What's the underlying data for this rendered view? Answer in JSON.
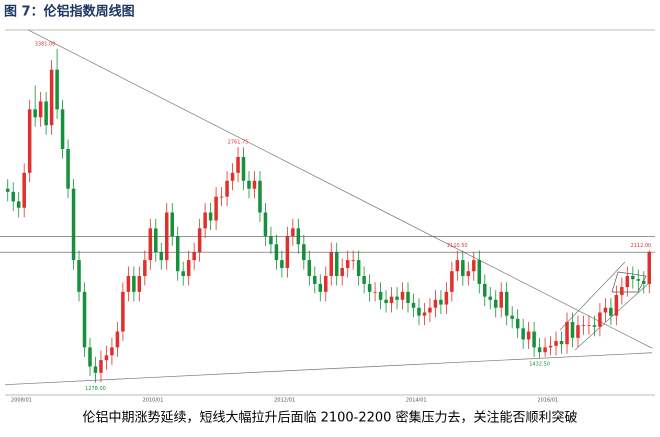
{
  "chart_data": {
    "type": "candlestick",
    "title": "图 7：伦铝指数周线图",
    "caption": "伦铝中期涨势延续，短线大幅拉升后面临 2100-2200 密集压力去，关注能否顺利突破",
    "up_color": "#e0302c",
    "down_color": "#14913a",
    "ylim": [
      1200,
      3500
    ],
    "categories": [
      null,
      null,
      null,
      "2008/01",
      null,
      null,
      null,
      null,
      null,
      null,
      null,
      null,
      null,
      null,
      null,
      null,
      null,
      null,
      null,
      null,
      null,
      null,
      null,
      null,
      null,
      null,
      null,
      "2010/01",
      null,
      null,
      null,
      null,
      null,
      null,
      null,
      null,
      null,
      null,
      null,
      null,
      null,
      null,
      null,
      null,
      null,
      null,
      null,
      null,
      null,
      null,
      null,
      "2012/01",
      null,
      null,
      null,
      null,
      null,
      null,
      null,
      null,
      null,
      null,
      null,
      null,
      null,
      null,
      null,
      null,
      null,
      null,
      null,
      null,
      null,
      null,
      null,
      "2014/01",
      null,
      null,
      null,
      null,
      null,
      null,
      null,
      null,
      null,
      null,
      null,
      null,
      null,
      null,
      null,
      null,
      null,
      null,
      null,
      null,
      null,
      null,
      null,
      "2016/01",
      null,
      null,
      null,
      null,
      null,
      null,
      null,
      null,
      null,
      null,
      null,
      null,
      null,
      null,
      null,
      null,
      null,
      null
    ],
    "ohlc": [
      [
        2500,
        2560,
        2420,
        2480
      ],
      [
        2480,
        2540,
        2360,
        2420
      ],
      [
        2420,
        2480,
        2320,
        2380
      ],
      [
        2380,
        2660,
        2320,
        2600
      ],
      [
        2600,
        3060,
        2540,
        3000
      ],
      [
        3000,
        3150,
        2890,
        2950
      ],
      [
        2950,
        3110,
        2890,
        3050
      ],
      [
        3050,
        3110,
        2840,
        2900
      ],
      [
        2900,
        3310,
        2840,
        3250
      ],
      [
        3250,
        3381,
        2940,
        3000
      ],
      [
        3000,
        3060,
        2690,
        2750
      ],
      [
        2750,
        2810,
        2440,
        2500
      ],
      [
        2500,
        2560,
        1990,
        2050
      ],
      [
        2050,
        2110,
        1790,
        1850
      ],
      [
        1850,
        1910,
        1440,
        1500
      ],
      [
        1500,
        1560,
        1320,
        1380
      ],
      [
        1380,
        1440,
        1278,
        1340
      ],
      [
        1340,
        1480,
        1280,
        1420
      ],
      [
        1420,
        1510,
        1360,
        1450
      ],
      [
        1450,
        1560,
        1390,
        1500
      ],
      [
        1500,
        1660,
        1440,
        1600
      ],
      [
        1600,
        1910,
        1540,
        1850
      ],
      [
        1850,
        2010,
        1790,
        1950
      ],
      [
        1950,
        2010,
        1790,
        1850
      ],
      [
        1850,
        2010,
        1790,
        1950
      ],
      [
        1950,
        2110,
        1890,
        2050
      ],
      [
        2050,
        2310,
        1990,
        2250
      ],
      [
        2250,
        2310,
        2040,
        2100
      ],
      [
        2100,
        2160,
        1990,
        2050
      ],
      [
        2050,
        2410,
        1990,
        2350
      ],
      [
        2350,
        2410,
        2140,
        2200
      ],
      [
        2200,
        2260,
        1920,
        1980
      ],
      [
        1980,
        2040,
        1890,
        1950
      ],
      [
        1950,
        2110,
        1890,
        2050
      ],
      [
        2050,
        2160,
        1990,
        2100
      ],
      [
        2100,
        2310,
        2040,
        2250
      ],
      [
        2250,
        2410,
        2190,
        2350
      ],
      [
        2350,
        2410,
        2240,
        2300
      ],
      [
        2300,
        2510,
        2240,
        2450
      ],
      [
        2450,
        2510,
        2390,
        2450
      ],
      [
        2450,
        2610,
        2390,
        2550
      ],
      [
        2550,
        2660,
        2490,
        2600
      ],
      [
        2600,
        2761.75,
        2540,
        2700
      ],
      [
        2700,
        2760,
        2490,
        2550
      ],
      [
        2550,
        2610,
        2440,
        2500
      ],
      [
        2500,
        2610,
        2440,
        2550
      ],
      [
        2550,
        2610,
        2290,
        2350
      ],
      [
        2350,
        2410,
        2140,
        2200
      ],
      [
        2200,
        2260,
        2090,
        2150
      ],
      [
        2150,
        2210,
        1990,
        2050
      ],
      [
        2050,
        2110,
        1940,
        2000
      ],
      [
        2000,
        2260,
        1940,
        2200
      ],
      [
        2200,
        2310,
        2140,
        2250
      ],
      [
        2250,
        2310,
        2090,
        2150
      ],
      [
        2150,
        2210,
        1990,
        2050
      ],
      [
        2050,
        2110,
        1890,
        1950
      ],
      [
        1950,
        2010,
        1840,
        1900
      ],
      [
        1900,
        1960,
        1790,
        1850
      ],
      [
        1850,
        2010,
        1790,
        1950
      ],
      [
        1950,
        2160,
        1890,
        2100
      ],
      [
        2100,
        2160,
        1890,
        1950
      ],
      [
        1950,
        2060,
        1890,
        2000
      ],
      [
        2000,
        2110,
        1940,
        2050
      ],
      [
        2050,
        2110,
        1990,
        2050
      ],
      [
        2050,
        2110,
        1890,
        1950
      ],
      [
        1950,
        2010,
        1840,
        1900
      ],
      [
        1900,
        1960,
        1790,
        1850
      ],
      [
        1850,
        1910,
        1790,
        1850
      ],
      [
        1850,
        1910,
        1740,
        1800
      ],
      [
        1800,
        1860,
        1720,
        1780
      ],
      [
        1780,
        1880,
        1720,
        1820
      ],
      [
        1820,
        1880,
        1740,
        1800
      ],
      [
        1800,
        1910,
        1740,
        1850
      ],
      [
        1850,
        1910,
        1720,
        1780
      ],
      [
        1780,
        1840,
        1690,
        1750
      ],
      [
        1750,
        1810,
        1640,
        1700
      ],
      [
        1700,
        1780,
        1640,
        1720
      ],
      [
        1720,
        1810,
        1660,
        1750
      ],
      [
        1750,
        1860,
        1690,
        1800
      ],
      [
        1800,
        1860,
        1710,
        1770
      ],
      [
        1770,
        1910,
        1710,
        1850
      ],
      [
        1850,
        2040,
        1790,
        1980
      ],
      [
        1980,
        2110.5,
        1920,
        2050
      ],
      [
        2050,
        2110,
        1890,
        1950
      ],
      [
        1950,
        2040,
        1890,
        1980
      ],
      [
        1980,
        2100,
        1920,
        2050
      ],
      [
        2050,
        2110,
        1840,
        1900
      ],
      [
        1900,
        1960,
        1760,
        1820
      ],
      [
        1820,
        1880,
        1740,
        1800
      ],
      [
        1800,
        1860,
        1690,
        1750
      ],
      [
        1750,
        1910,
        1690,
        1850
      ],
      [
        1850,
        1910,
        1640,
        1700
      ],
      [
        1700,
        1760,
        1620,
        1680
      ],
      [
        1680,
        1740,
        1560,
        1620
      ],
      [
        1620,
        1680,
        1490,
        1550
      ],
      [
        1550,
        1660,
        1490,
        1600
      ],
      [
        1600,
        1660,
        1440,
        1500
      ],
      [
        1500,
        1560,
        1432.5,
        1470
      ],
      [
        1470,
        1560,
        1440,
        1500
      ],
      [
        1500,
        1570,
        1450,
        1510
      ],
      [
        1510,
        1600,
        1450,
        1540
      ],
      [
        1540,
        1600,
        1460,
        1520
      ],
      [
        1520,
        1720,
        1460,
        1660
      ],
      [
        1660,
        1720,
        1500,
        1560
      ],
      [
        1560,
        1700,
        1500,
        1640
      ],
      [
        1640,
        1700,
        1580,
        1640
      ],
      [
        1640,
        1700,
        1580,
        1640
      ],
      [
        1640,
        1700,
        1570,
        1630
      ],
      [
        1630,
        1780,
        1570,
        1720
      ],
      [
        1720,
        1810,
        1660,
        1750
      ],
      [
        1750,
        1810,
        1640,
        1700
      ],
      [
        1700,
        1890,
        1640,
        1830
      ],
      [
        1830,
        1940,
        1770,
        1880
      ],
      [
        1880,
        2010,
        1820,
        1950
      ],
      [
        1950,
        2010,
        1870,
        1930
      ],
      [
        1930,
        1990,
        1860,
        1920
      ],
      [
        1920,
        1980,
        1840,
        1900
      ],
      [
        1900,
        2112,
        1840,
        2100
      ]
    ],
    "annotations": [
      {
        "label": "3381.00",
        "value": 3381
      },
      {
        "label": "1278.00",
        "value": 1278
      },
      {
        "label": "2761.75",
        "value": 2761.75
      },
      {
        "label": "2110.50",
        "value": 2110.5
      },
      {
        "label": "1432.50",
        "value": 1432.5
      },
      {
        "label": "2112.00",
        "value": 2112
      }
    ],
    "levels": [
      2200,
      2100
    ],
    "trendlines": [
      [
        3575,
        1495
      ],
      [
        1265,
        1466
      ]
    ]
  }
}
